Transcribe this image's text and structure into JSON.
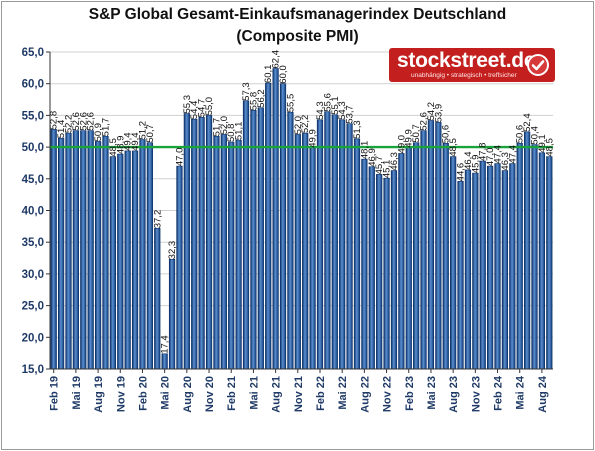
{
  "chart_data": {
    "type": "bar",
    "title_line1": "S&P Global Gesamt-Einkaufsmanagerindex Deutschland",
    "title_line2": "(Composite PMI)",
    "ylim": [
      15,
      65
    ],
    "yticks": [
      "15,0",
      "20,0",
      "25,0",
      "30,0",
      "35,0",
      "40,0",
      "45,0",
      "50,0",
      "55,0",
      "60,0",
      "65,0"
    ],
    "reference_line": 50,
    "colors": {
      "bar": "#5b8fd0",
      "bar_dark": "#0a2f66",
      "reference": "#1aa33a",
      "grid": "#d0d0d0",
      "axis": "#333333"
    },
    "x_tick_labels": [
      "Feb 19",
      "Mai 19",
      "Aug 19",
      "Nov 19",
      "Feb 20",
      "Mai 20",
      "Aug 20",
      "Nov 20",
      "Feb 21",
      "Mai 21",
      "Aug 21",
      "Nov 21",
      "Feb 22",
      "Mai 22",
      "Aug 22",
      "Nov 22",
      "Feb 23",
      "Mai 23",
      "Aug 23",
      "Nov 23",
      "Feb 24",
      "Mai 24",
      "Aug 24"
    ],
    "values": [
      52.8,
      51.4,
      52.2,
      52.6,
      52.6,
      52.6,
      50.9,
      51.7,
      48.5,
      48.9,
      49.4,
      49.4,
      51.2,
      50.7,
      37.2,
      17.4,
      32.3,
      47.0,
      55.3,
      54.4,
      54.7,
      55.0,
      51.7,
      52.0,
      50.8,
      51.1,
      57.3,
      55.8,
      56.2,
      60.1,
      62.4,
      60.0,
      55.5,
      52.0,
      52.2,
      49.9,
      54.3,
      55.6,
      55.1,
      54.3,
      53.7,
      51.3,
      48.1,
      46.9,
      45.7,
      45.1,
      46.3,
      49.0,
      49.9,
      50.7,
      52.6,
      54.2,
      53.9,
      50.6,
      48.5,
      44.6,
      46.4,
      45.9,
      47.8,
      47.0,
      47.4,
      46.3,
      47.4,
      50.6,
      52.4,
      50.4,
      49.1,
      48.5
    ],
    "data_labels": [
      "52,8",
      "51,4",
      "52,2",
      "52,6",
      "52,6",
      "52,6",
      "50,9",
      "51,7",
      "48,5",
      "48,9",
      "49,4",
      "49,4",
      "51,2",
      "50,7",
      "37,2",
      "17,4",
      "32,3",
      "47,0",
      "55,3",
      "54,4",
      "54,7",
      "55,0",
      "51,7",
      "52,0",
      "50,8",
      "51,1",
      "57,3",
      "55,8",
      "56,2",
      "60,1",
      "62,4",
      "60,0",
      "55,5",
      "52,0",
      "52,2",
      "49,9",
      "54,3",
      "55,6",
      "55,1",
      "54,3",
      "53,7",
      "51,3",
      "48,1",
      "46,9",
      "45,7",
      "45,1",
      "46,3",
      "49,0",
      "49,9",
      "50,7",
      "52,6",
      "54,2",
      "53,9",
      "50,6",
      "48,5",
      "44,6",
      "46,4",
      "45,9",
      "47,8",
      "47,0",
      "47,4",
      "46,3",
      "47,4",
      "50,6",
      "52,4",
      "50,4",
      "49,1",
      "48,5"
    ]
  },
  "logo": {
    "name": "stockstreet.de",
    "tagline": "unabhängig • strategisch • treffsicher",
    "icon": "checkmark-icon"
  }
}
